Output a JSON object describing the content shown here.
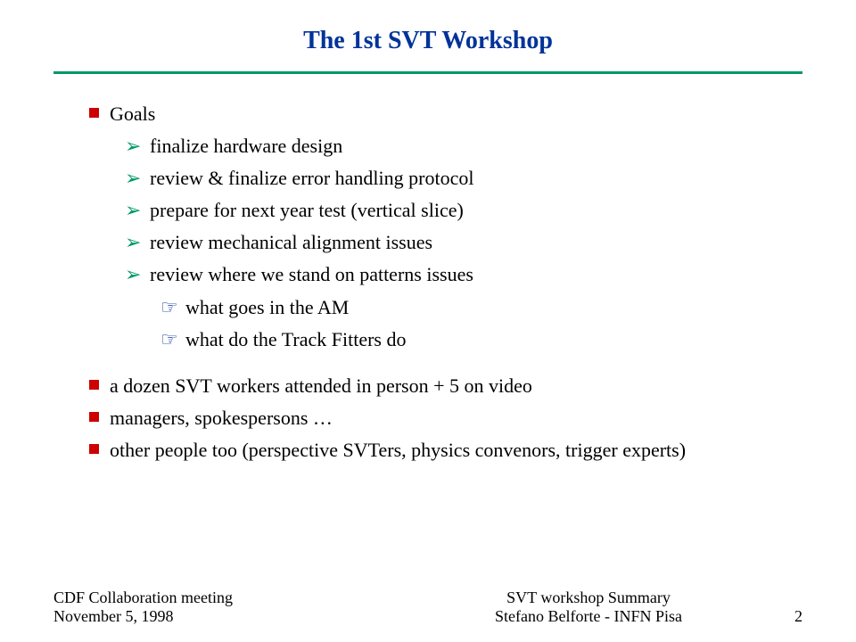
{
  "title": "The 1st SVT Workshop",
  "colors": {
    "title": "#003399",
    "divider": "#009966",
    "bullet_l1": "#cc0000",
    "bullet_l2": "#009966",
    "bullet_l3": "#003399",
    "text": "#000000",
    "background": "#ffffff"
  },
  "fonts": {
    "family": "Times New Roman",
    "title_size_pt": 21,
    "body_size_pt": 17,
    "footer_size_pt": 14
  },
  "items": {
    "goals": "Goals",
    "goals_sub": {
      "a": "finalize hardware design",
      "b": "review & finalize error handling protocol",
      "c": "prepare for next year test (vertical slice)",
      "d": "review mechanical alignment issues",
      "e": "review where we stand on patterns issues"
    },
    "patterns_sub": {
      "a": "what goes in the AM",
      "b": "what do the Track Fitters do"
    },
    "attend": "a dozen SVT workers attended in person + 5 on video",
    "managers": "managers, spokespersons …",
    "others": "other people too (perspective SVTers, physics convenors, trigger experts)"
  },
  "footer": {
    "left1": "CDF Collaboration meeting",
    "left2": "November 5, 1998",
    "center1": "SVT workshop Summary",
    "center2": "Stefano Belforte - INFN Pisa",
    "page": "2"
  }
}
